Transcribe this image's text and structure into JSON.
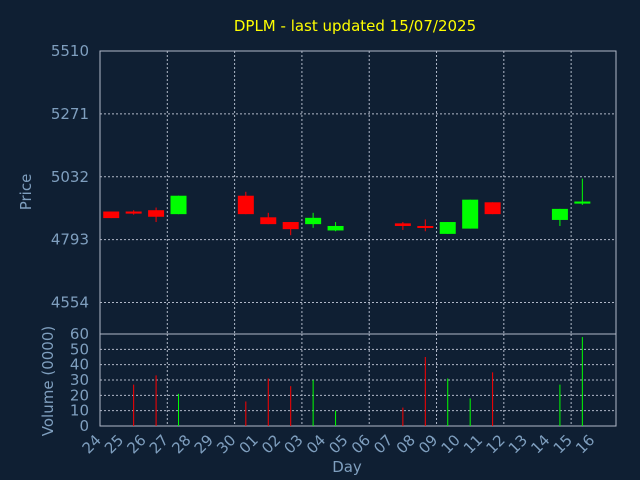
{
  "chart_data": [
    {
      "type": "candlestick",
      "title": "DPLM - last updated 15/07/2025",
      "ylabel": "Price",
      "ylim": [
        4434.5,
        5510
      ],
      "yticks": [
        "5510",
        "5271",
        "5032",
        "4793",
        "4554"
      ],
      "ytick_values": [
        5510,
        5271,
        5032,
        4793,
        4554
      ],
      "grid": true,
      "colors": {
        "up": "#00ff00",
        "down": "#ff0000",
        "title": "#ffff00",
        "text": "#7f9fbf"
      },
      "days": [
        "24",
        "25",
        "26",
        "27",
        "28",
        "29",
        "30",
        "01",
        "02",
        "03",
        "04",
        "05",
        "06",
        "07",
        "08",
        "09",
        "10",
        "11",
        "12",
        "13",
        "14",
        "15",
        "16"
      ],
      "candles": [
        {
          "day": "24",
          "open": 4900,
          "high": 4900,
          "low": 4875,
          "close": 4875
        },
        {
          "day": "25",
          "open": 4900,
          "high": 4905,
          "low": 4888,
          "close": 4892
        },
        {
          "day": "26",
          "open": 4905,
          "high": 4915,
          "low": 4860,
          "close": 4880
        },
        {
          "day": "27",
          "open": 4890,
          "high": 4960,
          "low": 4890,
          "close": 4960
        },
        {
          "day": "30",
          "open": 4960,
          "high": 4975,
          "low": 4890,
          "close": 4890
        },
        {
          "day": "01",
          "open": 4878,
          "high": 4895,
          "low": 4852,
          "close": 4852
        },
        {
          "day": "02",
          "open": 4860,
          "high": 4860,
          "low": 4810,
          "close": 4833
        },
        {
          "day": "03",
          "open": 4852,
          "high": 4895,
          "low": 4838,
          "close": 4876
        },
        {
          "day": "04",
          "open": 4828,
          "high": 4860,
          "low": 4825,
          "close": 4845
        },
        {
          "day": "07",
          "open": 4855,
          "high": 4860,
          "low": 4830,
          "close": 4845
        },
        {
          "day": "08",
          "open": 4845,
          "high": 4870,
          "low": 4825,
          "close": 4840
        },
        {
          "day": "09",
          "open": 4815,
          "high": 4860,
          "low": 4815,
          "close": 4860
        },
        {
          "day": "10",
          "open": 4835,
          "high": 4945,
          "low": 4835,
          "close": 4945
        },
        {
          "day": "11",
          "open": 4935,
          "high": 4935,
          "low": 4890,
          "close": 4890
        },
        {
          "day": "14",
          "open": 4868,
          "high": 4910,
          "low": 4845,
          "close": 4910
        },
        {
          "day": "15",
          "open": 4930,
          "high": 5025,
          "low": 4925,
          "close": 4938
        }
      ]
    },
    {
      "type": "bar",
      "ylabel": "Volume (0000)",
      "xlabel": "Day",
      "ylim": [
        0,
        60
      ],
      "yticks": [
        "60",
        "50",
        "40",
        "30",
        "20",
        "10",
        "0"
      ],
      "ytick_values": [
        60,
        50,
        40,
        30,
        20,
        10,
        0
      ],
      "bars": [
        {
          "day": "24",
          "value": 0,
          "dir": "down"
        },
        {
          "day": "25",
          "value": 27,
          "dir": "down"
        },
        {
          "day": "26",
          "value": 33,
          "dir": "down"
        },
        {
          "day": "27",
          "value": 21,
          "dir": "up"
        },
        {
          "day": "30",
          "value": 16,
          "dir": "down"
        },
        {
          "day": "01",
          "value": 31,
          "dir": "down"
        },
        {
          "day": "02",
          "value": 26,
          "dir": "down"
        },
        {
          "day": "03",
          "value": 30,
          "dir": "up"
        },
        {
          "day": "04",
          "value": 10,
          "dir": "up"
        },
        {
          "day": "07",
          "value": 12,
          "dir": "down"
        },
        {
          "day": "08",
          "value": 45,
          "dir": "down"
        },
        {
          "day": "09",
          "value": 31,
          "dir": "up"
        },
        {
          "day": "10",
          "value": 18,
          "dir": "up"
        },
        {
          "day": "11",
          "value": 35,
          "dir": "down"
        },
        {
          "day": "14",
          "value": 27,
          "dir": "up"
        },
        {
          "day": "15",
          "value": 58,
          "dir": "up"
        }
      ]
    }
  ]
}
